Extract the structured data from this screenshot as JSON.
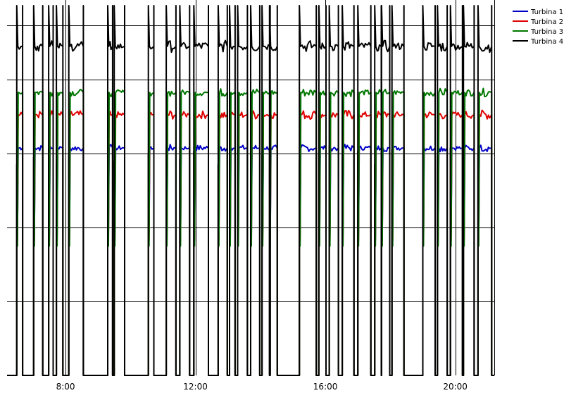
{
  "chart_data": {
    "type": "line",
    "title": "",
    "xlabel": "",
    "ylabel": "",
    "x_ticks": [
      "8:00",
      "12:00",
      "16:00",
      "20:00"
    ],
    "x_tick_hours": [
      8,
      12,
      16,
      20
    ],
    "xlim_hours": [
      6.2,
      21.2
    ],
    "ylim": [
      0,
      1
    ],
    "grid": "on",
    "legend_position": "top-right",
    "intervals": [
      [
        6.5,
        6.68
      ],
      [
        7.02,
        7.3
      ],
      [
        7.48,
        7.62
      ],
      [
        7.72,
        7.92
      ],
      [
        8.1,
        8.55
      ],
      [
        9.3,
        9.45
      ],
      [
        9.5,
        9.82
      ],
      [
        10.55,
        10.72
      ],
      [
        11.1,
        11.4
      ],
      [
        11.52,
        11.82
      ],
      [
        11.95,
        12.4
      ],
      [
        12.7,
        12.98
      ],
      [
        13.05,
        13.22
      ],
      [
        13.3,
        13.6
      ],
      [
        13.7,
        13.98
      ],
      [
        14.05,
        14.3
      ],
      [
        14.28,
        14.52
      ],
      [
        15.2,
        15.72
      ],
      [
        15.8,
        16.02
      ],
      [
        16.12,
        16.4
      ],
      [
        16.52,
        16.88
      ],
      [
        17.0,
        17.4
      ],
      [
        17.52,
        17.72
      ],
      [
        17.73,
        17.98
      ],
      [
        18.05,
        18.42
      ],
      [
        19.0,
        19.38
      ],
      [
        19.45,
        19.75
      ],
      [
        19.85,
        20.22
      ],
      [
        20.25,
        20.58
      ],
      [
        20.7,
        21.12
      ]
    ],
    "series": [
      {
        "name": "Turbina 1",
        "color": "#0000c8",
        "level": 0.615,
        "noise": 0.006
      },
      {
        "name": "Turbina 2",
        "color": "#e00000",
        "level": 0.705,
        "noise": 0.008
      },
      {
        "name": "Turbina 3",
        "color": "#007800",
        "level": 0.765,
        "noise": 0.007
      },
      {
        "name": "Turbina 4",
        "color": "#000000",
        "level": 0.89,
        "noise": 0.01
      }
    ]
  }
}
